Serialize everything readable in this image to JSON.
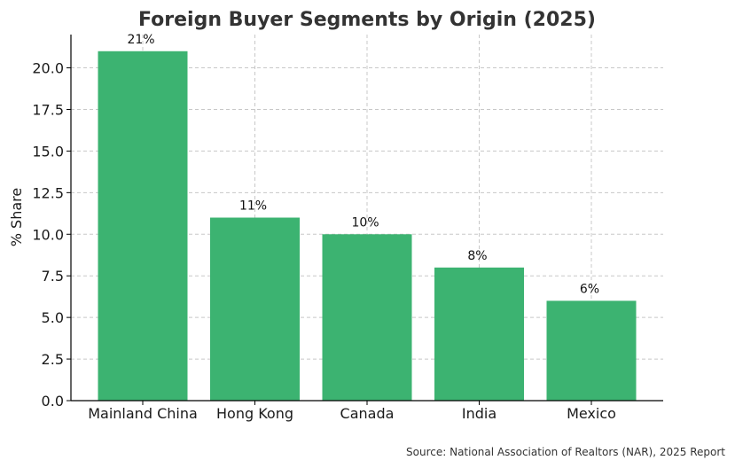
{
  "chart_data": {
    "type": "bar",
    "title": "Foreign Buyer Segments by Origin (2025)",
    "xlabel": "",
    "ylabel": "% Share",
    "categories": [
      "Mainland China",
      "Hong Kong",
      "Canada",
      "India",
      "Mexico"
    ],
    "values": [
      21,
      11,
      10,
      8,
      6
    ],
    "data_labels": [
      "21%",
      "11%",
      "10%",
      "8%",
      "6%"
    ],
    "ylim": [
      0,
      22
    ],
    "yticks": [
      0.0,
      2.5,
      5.0,
      7.5,
      10.0,
      12.5,
      15.0,
      17.5,
      20.0
    ],
    "ytick_labels": [
      "0.0",
      "2.5",
      "5.0",
      "7.5",
      "10.0",
      "12.5",
      "15.0",
      "17.5",
      "20.0"
    ],
    "grid": true,
    "bar_color": "#3cb371",
    "source": "Source: National Association of Realtors (NAR), 2025 Report"
  }
}
